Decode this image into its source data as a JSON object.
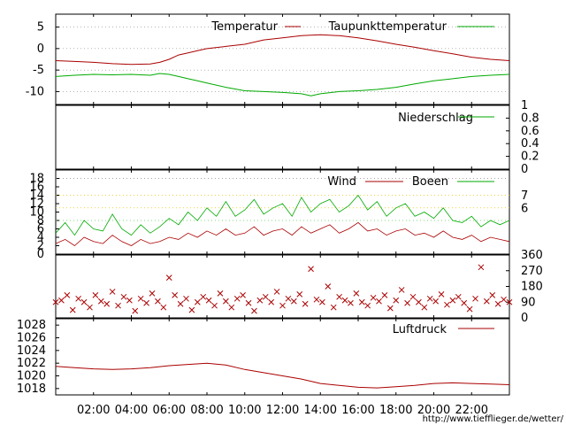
{
  "colors": {
    "temperature": "#aa0000",
    "dewpoint": "#00aa00",
    "precipitation": "#00aa00",
    "wind": "#aa0000",
    "gusts": "#00aa00",
    "direction": "#aa0000",
    "pressure": "#aa0000",
    "grid": "#888888",
    "grid_yellow": "#e8c800",
    "grid_green": "#55cc55"
  },
  "footer_url": "http://www.tiefflieger.de/wetter/",
  "x_ticks": [
    "02:00",
    "04:00",
    "06:00",
    "08:00",
    "10:00",
    "12:00",
    "14:00",
    "16:00",
    "18:00",
    "20:00",
    "22:00"
  ],
  "chart_data": [
    {
      "type": "line",
      "id": "temperature",
      "ylim": [
        -13,
        8
      ],
      "y_ticks": [
        "5",
        "0",
        "-5",
        "-10"
      ],
      "x_unit": "hour",
      "series": [
        {
          "name": "Temperatur",
          "x": [
            0,
            1,
            2,
            3,
            4,
            5,
            5.5,
            6,
            6.5,
            7,
            7.5,
            8,
            9,
            10,
            11,
            12,
            13,
            14,
            15,
            16,
            17,
            18,
            19,
            20,
            21,
            22,
            23,
            24
          ],
          "values": [
            -2.8,
            -3.0,
            -3.2,
            -3.5,
            -3.7,
            -3.6,
            -3.2,
            -2.5,
            -1.5,
            -1.0,
            -0.5,
            0.0,
            0.5,
            1.0,
            2.0,
            2.5,
            3.0,
            3.2,
            3.0,
            2.5,
            1.8,
            1.0,
            0.3,
            -0.5,
            -1.2,
            -2.0,
            -2.5,
            -2.8
          ]
        },
        {
          "name": "Taupunkttemperatur",
          "x": [
            0,
            1,
            2,
            3,
            4,
            5,
            5.5,
            6,
            6.5,
            7,
            7.5,
            8,
            9,
            10,
            11,
            12,
            13,
            13.5,
            14,
            15,
            16,
            17,
            18,
            19,
            20,
            21,
            22,
            23,
            24
          ],
          "values": [
            -6.5,
            -6.2,
            -6.0,
            -6.1,
            -6.0,
            -6.2,
            -5.8,
            -6.0,
            -6.5,
            -7.0,
            -7.5,
            -8.0,
            -9.0,
            -9.8,
            -10.0,
            -10.2,
            -10.5,
            -11.0,
            -10.5,
            -10.0,
            -9.8,
            -9.5,
            -9.0,
            -8.2,
            -7.5,
            -7.0,
            -6.5,
            -6.2,
            -6.0
          ]
        }
      ]
    },
    {
      "type": "line",
      "id": "precipitation",
      "ylim": [
        0,
        1
      ],
      "y_ticks": [
        "1",
        "0.8",
        "0.6",
        "0.4",
        "0.2",
        "0"
      ],
      "x_unit": "hour",
      "series": [
        {
          "name": "Niederschlag",
          "x": [
            0,
            24
          ],
          "values": [
            0,
            0
          ]
        }
      ]
    },
    {
      "type": "line",
      "id": "wind",
      "ylim": [
        0,
        20
      ],
      "y_ticks": [
        "18",
        "16",
        "14",
        "12",
        "10",
        "8",
        "6",
        "4",
        "2",
        "0"
      ],
      "y2_ticks": [
        "7",
        "6"
      ],
      "x_unit": "hour",
      "series": [
        {
          "name": "Wind",
          "x": [
            0,
            0.5,
            1,
            1.5,
            2,
            2.5,
            3,
            3.5,
            4,
            4.5,
            5,
            5.5,
            6,
            6.5,
            7,
            7.5,
            8,
            8.5,
            9,
            9.5,
            10,
            10.5,
            11,
            11.5,
            12,
            12.5,
            13,
            13.5,
            14,
            14.5,
            15,
            15.5,
            16,
            16.5,
            17,
            17.5,
            18,
            18.5,
            19,
            19.5,
            20,
            20.5,
            21,
            21.5,
            22,
            22.5,
            23,
            23.5,
            24
          ],
          "values": [
            2.5,
            3.5,
            2.0,
            4.0,
            3.0,
            2.5,
            4.5,
            3.0,
            2.0,
            3.5,
            2.5,
            3.0,
            4.0,
            3.5,
            5.0,
            4.0,
            5.5,
            4.5,
            6.0,
            4.5,
            5.0,
            6.5,
            4.5,
            5.5,
            6.0,
            4.5,
            6.5,
            5.0,
            6.0,
            7.0,
            5.0,
            6.0,
            7.5,
            5.5,
            6.0,
            4.5,
            5.5,
            6.0,
            4.5,
            5.0,
            4.0,
            5.5,
            4.0,
            3.5,
            4.5,
            3.0,
            4.0,
            3.5,
            3.0
          ]
        },
        {
          "name": "Boeen",
          "x": [
            0,
            0.5,
            1,
            1.5,
            2,
            2.5,
            3,
            3.5,
            4,
            4.5,
            5,
            5.5,
            6,
            6.5,
            7,
            7.5,
            8,
            8.5,
            9,
            9.5,
            10,
            10.5,
            11,
            11.5,
            12,
            12.5,
            13,
            13.5,
            14,
            14.5,
            15,
            15.5,
            16,
            16.5,
            17,
            17.5,
            18,
            18.5,
            19,
            19.5,
            20,
            20.5,
            21,
            21.5,
            22,
            22.5,
            23,
            23.5,
            24
          ],
          "values": [
            5.0,
            7.5,
            4.5,
            8.0,
            6.0,
            5.5,
            9.5,
            6.0,
            4.5,
            7.0,
            5.0,
            6.5,
            8.5,
            7.0,
            10.0,
            8.0,
            11.0,
            9.0,
            12.5,
            9.0,
            10.5,
            13.0,
            9.5,
            11.0,
            12.0,
            9.0,
            13.5,
            10.0,
            12.0,
            13.0,
            10.0,
            11.5,
            14.0,
            10.5,
            12.5,
            9.0,
            11.0,
            12.0,
            9.0,
            10.0,
            8.5,
            11.0,
            8.0,
            7.5,
            9.0,
            6.5,
            8.0,
            7.0,
            8.0
          ]
        }
      ]
    },
    {
      "type": "scatter",
      "id": "wind_direction",
      "ylim": [
        0,
        360
      ],
      "y2_ticks": [
        "360",
        "270",
        "180",
        "90",
        "0"
      ],
      "x_unit": "hour",
      "points": [
        [
          0.0,
          90
        ],
        [
          0.3,
          100
        ],
        [
          0.6,
          130
        ],
        [
          0.9,
          45
        ],
        [
          1.2,
          110
        ],
        [
          1.5,
          90
        ],
        [
          1.8,
          60
        ],
        [
          2.1,
          130
        ],
        [
          2.4,
          95
        ],
        [
          2.7,
          80
        ],
        [
          3.0,
          150
        ],
        [
          3.3,
          70
        ],
        [
          3.6,
          120
        ],
        [
          3.9,
          100
        ],
        [
          4.2,
          40
        ],
        [
          4.5,
          110
        ],
        [
          4.8,
          85
        ],
        [
          5.1,
          140
        ],
        [
          5.4,
          95
        ],
        [
          5.7,
          60
        ],
        [
          6.0,
          230
        ],
        [
          6.3,
          130
        ],
        [
          6.6,
          80
        ],
        [
          6.9,
          110
        ],
        [
          7.2,
          45
        ],
        [
          7.5,
          90
        ],
        [
          7.8,
          120
        ],
        [
          8.1,
          100
        ],
        [
          8.4,
          70
        ],
        [
          8.7,
          140
        ],
        [
          9.0,
          95
        ],
        [
          9.3,
          60
        ],
        [
          9.6,
          110
        ],
        [
          9.9,
          130
        ],
        [
          10.2,
          85
        ],
        [
          10.5,
          40
        ],
        [
          10.8,
          100
        ],
        [
          11.1,
          120
        ],
        [
          11.4,
          90
        ],
        [
          11.7,
          150
        ],
        [
          12.0,
          70
        ],
        [
          12.3,
          110
        ],
        [
          12.6,
          95
        ],
        [
          12.9,
          135
        ],
        [
          13.2,
          80
        ],
        [
          13.5,
          280
        ],
        [
          13.8,
          105
        ],
        [
          14.1,
          90
        ],
        [
          14.4,
          180
        ],
        [
          14.7,
          60
        ],
        [
          15.0,
          120
        ],
        [
          15.3,
          100
        ],
        [
          15.6,
          85
        ],
        [
          15.9,
          140
        ],
        [
          16.2,
          90
        ],
        [
          16.5,
          70
        ],
        [
          16.8,
          115
        ],
        [
          17.1,
          95
        ],
        [
          17.4,
          130
        ],
        [
          17.7,
          55
        ],
        [
          18.0,
          100
        ],
        [
          18.3,
          160
        ],
        [
          18.6,
          85
        ],
        [
          18.9,
          120
        ],
        [
          19.2,
          90
        ],
        [
          19.5,
          60
        ],
        [
          19.8,
          110
        ],
        [
          20.1,
          95
        ],
        [
          20.4,
          135
        ],
        [
          20.7,
          75
        ],
        [
          21.0,
          100
        ],
        [
          21.3,
          120
        ],
        [
          21.6,
          85
        ],
        [
          21.9,
          50
        ],
        [
          22.2,
          110
        ],
        [
          22.5,
          290
        ],
        [
          22.8,
          95
        ],
        [
          23.1,
          130
        ],
        [
          23.4,
          80
        ],
        [
          23.7,
          105
        ],
        [
          24.0,
          90
        ]
      ]
    },
    {
      "type": "line",
      "id": "pressure",
      "ylim": [
        1017,
        1029
      ],
      "y_ticks": [
        "1028",
        "1026",
        "1024",
        "1022",
        "1020",
        "1018"
      ],
      "x_unit": "hour",
      "series": [
        {
          "name": "Luftdruck",
          "x": [
            0,
            1,
            2,
            3,
            4,
            5,
            6,
            7,
            8,
            9,
            10,
            11,
            12,
            13,
            14,
            15,
            16,
            17,
            18,
            19,
            20,
            21,
            22,
            23,
            24
          ],
          "values": [
            1021.5,
            1021.3,
            1021.1,
            1021.0,
            1021.1,
            1021.3,
            1021.6,
            1021.8,
            1022.0,
            1021.7,
            1021.0,
            1020.5,
            1020.0,
            1019.5,
            1018.8,
            1018.5,
            1018.2,
            1018.1,
            1018.3,
            1018.5,
            1018.8,
            1018.9,
            1018.8,
            1018.7,
            1018.6
          ]
        }
      ]
    }
  ]
}
